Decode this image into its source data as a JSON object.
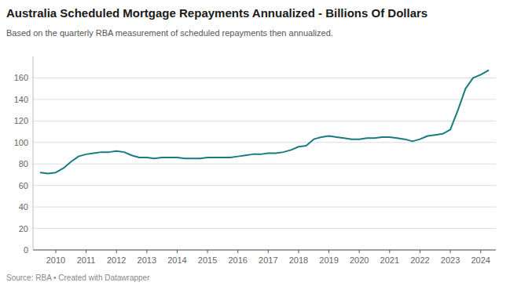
{
  "chart_data": {
    "type": "line",
    "title": "Australia Scheduled Mortgage Repayments Annualized - Billions Of Dollars",
    "subtitle": "Based on the quarterly RBA measurement of scheduled repayments then annualized.",
    "source": "Source: RBA • Created with Datawrapper",
    "color": "#1a7a82",
    "grid": true,
    "x": [
      2009.5,
      2009.75,
      2010.0,
      2010.25,
      2010.5,
      2010.75,
      2011.0,
      2011.25,
      2011.5,
      2011.75,
      2012.0,
      2012.25,
      2012.5,
      2012.75,
      2013.0,
      2013.25,
      2013.5,
      2013.75,
      2014.0,
      2014.25,
      2014.5,
      2014.75,
      2015.0,
      2015.25,
      2015.5,
      2015.75,
      2016.0,
      2016.25,
      2016.5,
      2016.75,
      2017.0,
      2017.25,
      2017.5,
      2017.75,
      2018.0,
      2018.25,
      2018.5,
      2018.75,
      2019.0,
      2019.25,
      2019.5,
      2019.75,
      2020.0,
      2020.25,
      2020.5,
      2020.75,
      2021.0,
      2021.25,
      2021.5,
      2021.75,
      2022.0,
      2022.25,
      2022.5,
      2022.75,
      2023.0,
      2023.25,
      2023.5,
      2023.75,
      2024.0,
      2024.25
    ],
    "values": [
      72,
      71,
      72,
      76,
      82,
      87,
      89,
      90,
      91,
      91,
      92,
      91,
      88,
      86,
      86,
      85,
      86,
      86,
      86,
      85,
      85,
      85,
      86,
      86,
      86,
      86,
      87,
      88,
      89,
      89,
      90,
      90,
      91,
      93,
      96,
      97,
      103,
      105,
      106,
      105,
      104,
      103,
      103,
      104,
      104,
      105,
      105,
      104,
      103,
      101,
      103,
      106,
      107,
      108,
      112,
      130,
      150,
      160,
      163,
      167
    ],
    "xlim": [
      2009.25,
      2024.5
    ],
    "ylim": [
      0,
      180
    ],
    "xticks": [
      2010,
      2011,
      2012,
      2013,
      2014,
      2015,
      2016,
      2017,
      2018,
      2019,
      2020,
      2021,
      2022,
      2023,
      2024
    ],
    "yticks": [
      0,
      20,
      40,
      60,
      80,
      100,
      120,
      140,
      160
    ]
  }
}
